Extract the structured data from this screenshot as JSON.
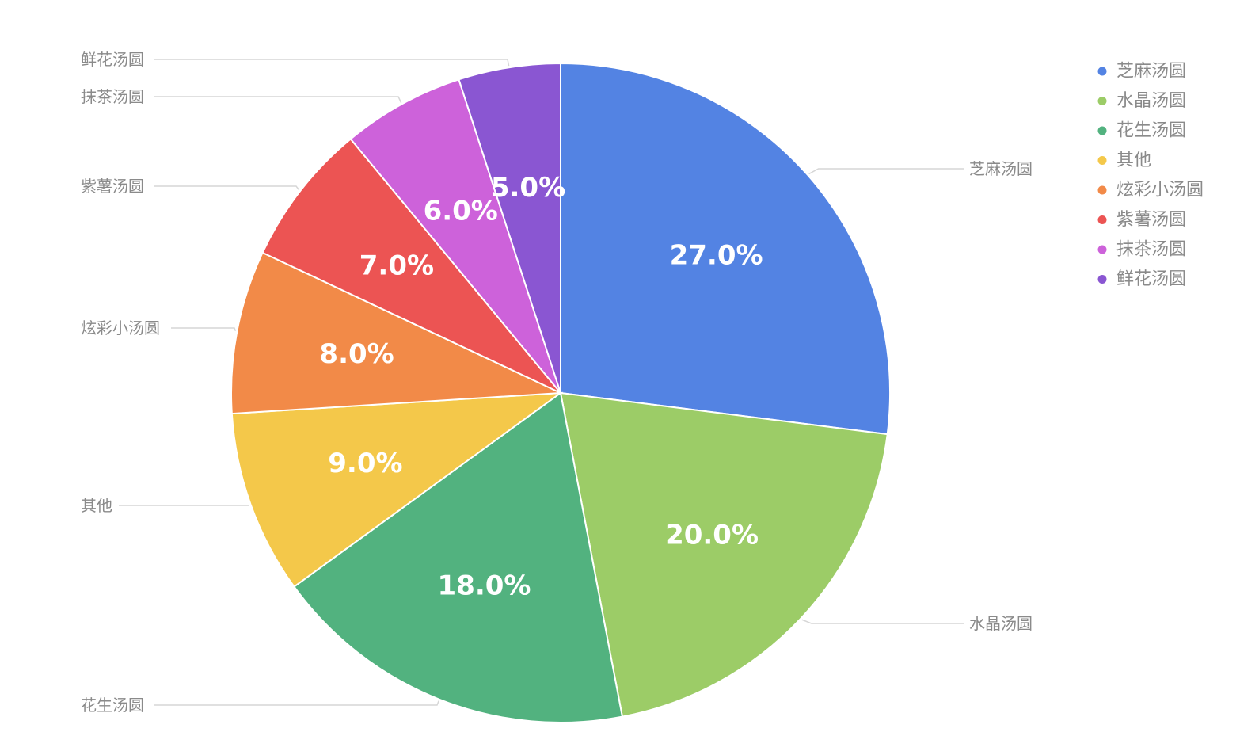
{
  "chart_data": {
    "type": "pie",
    "title": "",
    "categories": [
      "芝麻汤圆",
      "水晶汤圆",
      "花生汤圆",
      "其他",
      "炫彩小汤圆",
      "紫薯汤圆",
      "抹茶汤圆",
      "鲜花汤圆"
    ],
    "values": [
      27,
      20,
      18,
      9,
      8,
      7,
      6,
      5
    ],
    "value_labels": [
      "27.0%",
      "20.0%",
      "18.0%",
      "9.0%",
      "8.0%",
      "7.0%",
      "6.0%",
      "5.0%"
    ],
    "colors": [
      "#5383E3",
      "#9CCC67",
      "#52B27F",
      "#F4C84A",
      "#F28A48",
      "#EC5453",
      "#CD62DA",
      "#8A56D2"
    ],
    "start_angle_deg": 0,
    "direction": "clockwise",
    "legend": {
      "position": "top-right",
      "entries": [
        "芝麻汤圆",
        "水晶汤圆",
        "花生汤圆",
        "其他",
        "炫彩小汤圆",
        "紫薯汤圆",
        "抹茶汤圆",
        "鲜花汤圆"
      ]
    },
    "callout_labels": true
  }
}
